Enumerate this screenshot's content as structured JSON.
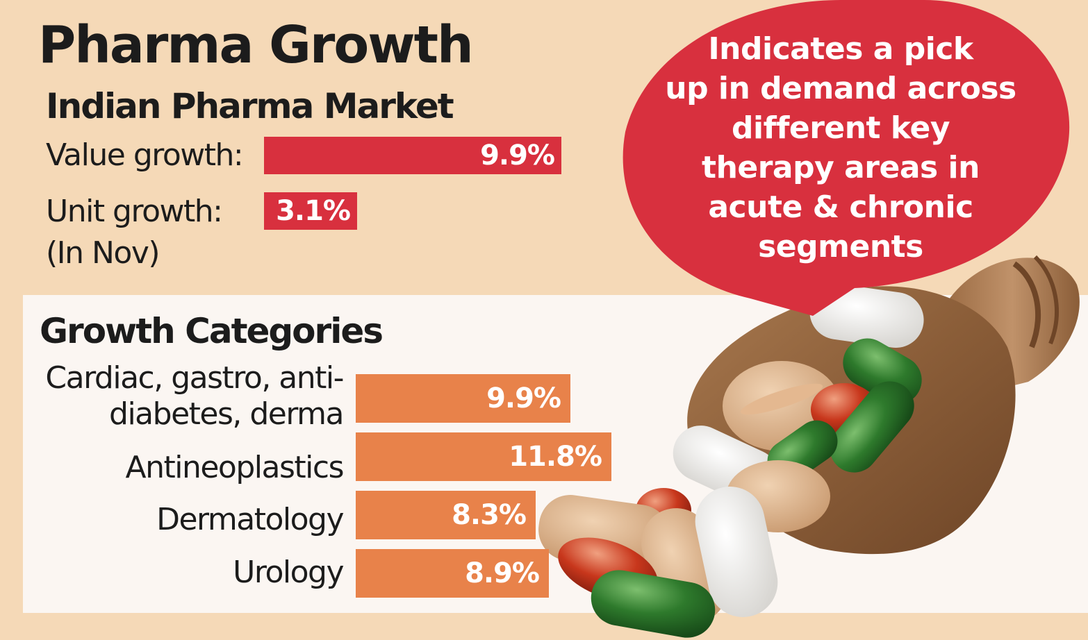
{
  "title": "Pharma Growth",
  "subtitle": "Indian Pharma Market",
  "note": "(In Nov)",
  "callout_lines": [
    "Indicates a pick",
    "up in demand across",
    "different key",
    "therapy areas in",
    "acute & chronic",
    "segments"
  ],
  "colors": {
    "background": "#f5d9b7",
    "panel": "#fbf6f2",
    "market_bar": "#d8303e",
    "category_bar": "#e8824a",
    "bubble": "#d8303e"
  },
  "chart_data": [
    {
      "type": "bar",
      "orientation": "horizontal",
      "title": "Indian Pharma Market",
      "categories": [
        "Value growth:",
        "Unit growth:"
      ],
      "values": [
        9.9,
        3.1
      ],
      "value_labels": [
        "9.9%",
        "3.1%"
      ],
      "unit": "%"
    },
    {
      "type": "bar",
      "orientation": "horizontal",
      "title": "Growth Categories",
      "categories": [
        "Cardiac, gastro, anti-\ndiabetes, derma",
        "Antineoplastics",
        "Dermatology",
        "Urology"
      ],
      "values": [
        9.9,
        11.8,
        8.3,
        8.9
      ],
      "value_labels": [
        "9.9%",
        "11.8%",
        "8.3%",
        "8.9%"
      ],
      "unit": "%"
    }
  ]
}
